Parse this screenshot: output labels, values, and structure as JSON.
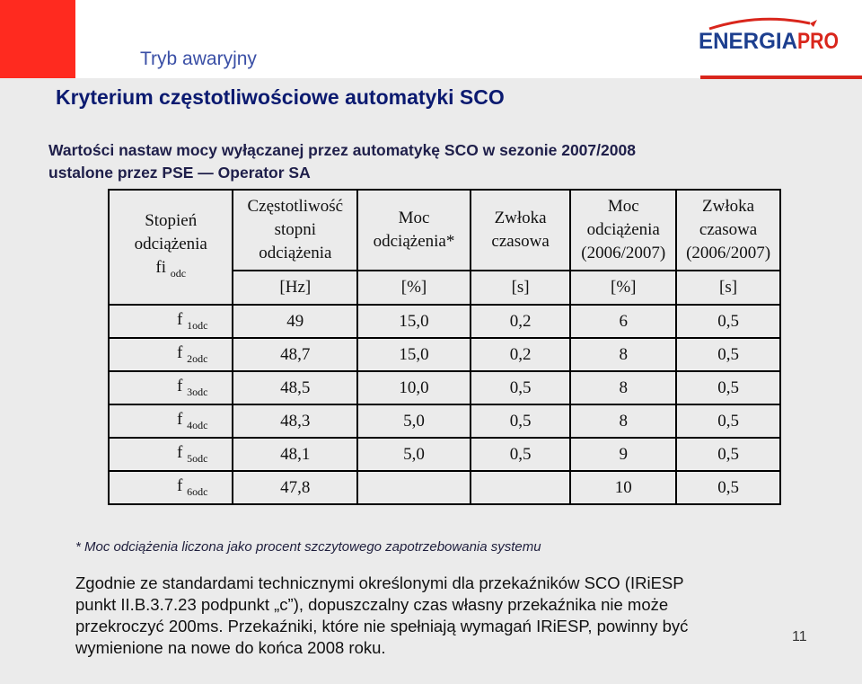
{
  "header": {
    "section": "Tryb awaryjny",
    "logo_text": "ENERGIAPRO"
  },
  "title": "Kryterium częstotliwościowe automatyki SCO",
  "subtitle": {
    "line1": "Wartości nastaw mocy wyłączanej przez automatykę SCO w sezonie 2007/2008",
    "line2": "ustalone przez PSE — Operator SA"
  },
  "table": {
    "headers": [
      {
        "l1": "Stopień",
        "l2": "odciążenia",
        "l3": "fi",
        "sub": "odc"
      },
      {
        "l1": "Częstotliwość",
        "l2": "stopni",
        "l3": "odciążenia"
      },
      {
        "l1": "Moc",
        "l2": "odciążenia*"
      },
      {
        "l1": "Zwłoka",
        "l2": "czasowa"
      },
      {
        "l1": "Moc",
        "l2": "odciążenia",
        "l3": "(2006/2007)"
      },
      {
        "l1": "Zwłoka",
        "l2": "czasowa",
        "l3": "(2006/2007)"
      }
    ],
    "units": [
      "[Hz]",
      "[%]",
      "[s]",
      "[%]",
      "[s]"
    ],
    "rows": [
      {
        "f": "f",
        "sub": "1odc",
        "hz": "49",
        "moc": "15,0",
        "zw": "0,2",
        "moc06": "6",
        "zw06": "0,5"
      },
      {
        "f": "f",
        "sub": "2odc",
        "hz": "48,7",
        "moc": "15,0",
        "zw": "0,2",
        "moc06": "8",
        "zw06": "0,5"
      },
      {
        "f": "f",
        "sub": "3odc",
        "hz": "48,5",
        "moc": "10,0",
        "zw": "0,5",
        "moc06": "8",
        "zw06": "0,5"
      },
      {
        "f": "f",
        "sub": "4odc",
        "hz": "48,3",
        "moc": "5,0",
        "zw": "0,5",
        "moc06": "8",
        "zw06": "0,5"
      },
      {
        "f": "f",
        "sub": "5odc",
        "hz": "48,1",
        "moc": "5,0",
        "zw": "0,5",
        "moc06": "9",
        "zw06": "0,5"
      },
      {
        "f": "f",
        "sub": "6odc",
        "hz": "47,8",
        "moc": "",
        "zw": "",
        "moc06": "10",
        "zw06": "0,5"
      }
    ]
  },
  "footnote": "* Moc odciążenia liczona jako procent szczytowego zapotrzebowania systemu",
  "note": {
    "line1": "Zgodnie ze standardami technicznymi określonymi dla przekaźników SCO (IRiESP",
    "line2": "punkt II.B.3.7.23 podpunkt „c”), dopuszczalny czas własny przekaźnika nie może",
    "line3": "przekroczyć 200ms. Przekaźniki, które nie spełniają wymagań IRiESP, powinny być",
    "line4": "wymienione na nowe do końca 2008 roku."
  },
  "page_number": "11",
  "colors": {
    "red": "#ff2a1f",
    "title_blue": "#0b1a70",
    "section_blue": "#3a4fa6",
    "panel_gray": "#ebebeb",
    "logo_blue": "#1d3f8f",
    "logo_red": "#d9261c"
  }
}
